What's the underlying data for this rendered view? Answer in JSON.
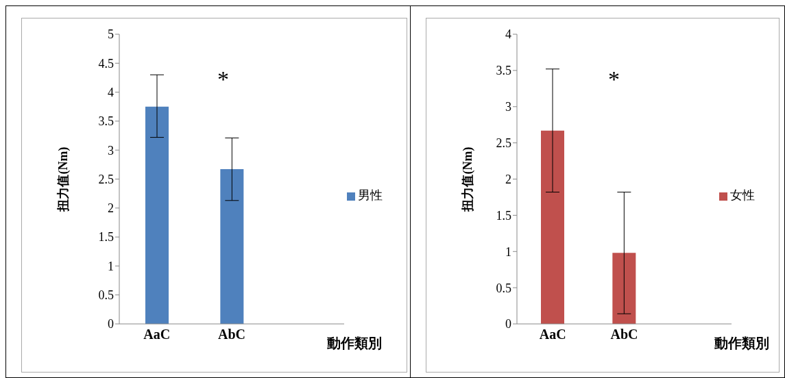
{
  "chart_data": [
    {
      "type": "bar",
      "categories": [
        "AaC",
        "AbC"
      ],
      "xlabel": "動作類別",
      "ylabel": "扭力值(Nm)",
      "series": [
        {
          "name": "男性",
          "color": "#4f81bd",
          "values": [
            3.75,
            2.67
          ],
          "errors": [
            [
              3.22,
              4.3
            ],
            [
              2.13,
              3.21
            ]
          ]
        }
      ],
      "ylim": [
        0,
        5
      ],
      "yticks": [
        0,
        0.5,
        1,
        1.5,
        2,
        2.5,
        3,
        3.5,
        4,
        4.5,
        5
      ],
      "grid": false,
      "legend": "right",
      "annotations": [
        "*"
      ]
    },
    {
      "type": "bar",
      "categories": [
        "AaC",
        "AbC"
      ],
      "xlabel": "動作類別",
      "ylabel": "扭力值(Nm)",
      "series": [
        {
          "name": "女性",
          "color": "#c0504d",
          "values": [
            2.67,
            0.98
          ],
          "errors": [
            [
              1.82,
              3.52
            ],
            [
              0.14,
              1.82
            ]
          ]
        }
      ],
      "ylim": [
        0,
        4
      ],
      "yticks": [
        0,
        0.5,
        1,
        1.5,
        2,
        2.5,
        3,
        3.5,
        4
      ],
      "grid": false,
      "legend": "right",
      "annotations": [
        "*"
      ]
    }
  ]
}
